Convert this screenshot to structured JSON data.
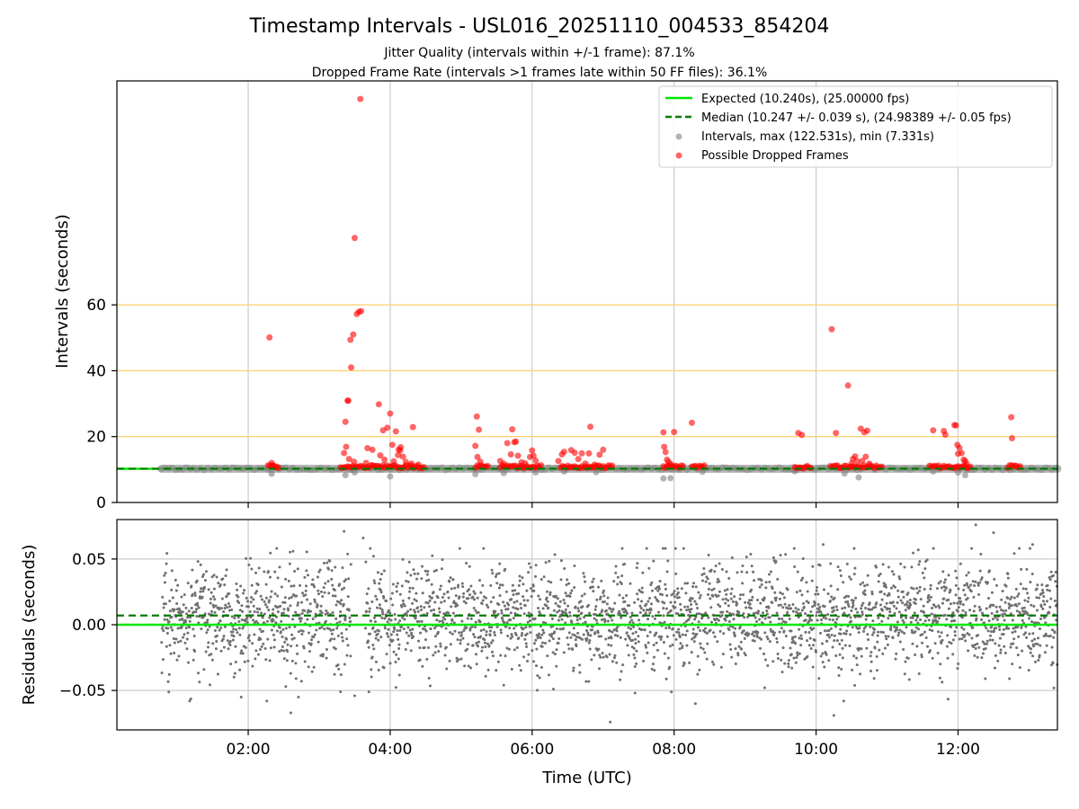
{
  "chart_data": {
    "title": "Timestamp Intervals - USL016_20251110_004533_854204",
    "subtitle_1": "Jitter Quality (intervals within +/-1 frame): 87.1%",
    "subtitle_2": "Dropped Frame Rate (intervals >1 frames late within 50 FF files): 36.1%",
    "x_axis": {
      "label": "Time (UTC)",
      "range_hours": [
        0.15,
        13.4
      ],
      "tick_hours": [
        2,
        4,
        6,
        8,
        10,
        12
      ],
      "tick_labels": [
        "02:00",
        "04:00",
        "06:00",
        "08:00",
        "10:00",
        "12:00"
      ]
    },
    "panels": [
      {
        "type": "scatter",
        "ylabel": "Intervals (seconds)",
        "ylim": [
          0,
          128
        ],
        "yticks": [
          0,
          20,
          40,
          60
        ],
        "ytick_labels": [
          "0",
          "20",
          "40",
          "60"
        ],
        "threshold_lines": [
          20,
          40,
          60
        ],
        "colors": {
          "expected": "#00e600",
          "median": "#007a00",
          "intervals": "#808080",
          "dropped": "#ff0000",
          "threshold": "#ffd27a"
        },
        "expected_value": 10.24,
        "median_value": 10.247,
        "series": [
          {
            "name": "Intervals, max (122.531s), min (7.331s)",
            "cluster_value": 10.24,
            "x_range": [
              0.78,
              13.4
            ],
            "outliers": [
              [
                2.33,
                8.7
              ],
              [
                3.37,
                8.3
              ],
              [
                3.5,
                9.1
              ],
              [
                4,
                7.9
              ],
              [
                5.2,
                8.6
              ],
              [
                5.6,
                8.9
              ],
              [
                6.05,
                9.1
              ],
              [
                6.45,
                9.4
              ],
              [
                6.9,
                9.2
              ],
              [
                7.85,
                7.3
              ],
              [
                7.95,
                7.4
              ],
              [
                8.4,
                9.3
              ],
              [
                9.7,
                9.5
              ],
              [
                10.4,
                8.8
              ],
              [
                10.6,
                7.6
              ],
              [
                11.65,
                9.4
              ],
              [
                12,
                9.1
              ],
              [
                12.1,
                8.3
              ]
            ]
          },
          {
            "name": "Possible Dropped Frames",
            "clusters": [
              [
                2.28,
                2.45
              ],
              [
                3.3,
                4.5
              ],
              [
                5.2,
                5.4
              ],
              [
                5.55,
                6.15
              ],
              [
                6.4,
                7.15
              ],
              [
                7.85,
                8.15
              ],
              [
                8.25,
                8.45
              ],
              [
                9.7,
                9.95
              ],
              [
                10.2,
                10.95
              ],
              [
                11.6,
                12.2
              ],
              [
                12.7,
                12.9
              ]
            ],
            "points": [
              [
                2.3,
                50.1
              ],
              [
                2.33,
                12
              ],
              [
                2.36,
                11.2
              ],
              [
                3.35,
                15
              ],
              [
                3.37,
                24.5
              ],
              [
                3.38,
                16.9
              ],
              [
                3.4,
                30.9
              ],
              [
                3.41,
                30.9
              ],
              [
                3.42,
                13.2
              ],
              [
                3.44,
                49.4
              ],
              [
                3.45,
                41
              ],
              [
                3.48,
                51
              ],
              [
                3.49,
                12.4
              ],
              [
                3.5,
                80.3
              ],
              [
                3.53,
                57.2
              ],
              [
                3.56,
                57.9
              ],
              [
                3.58,
                122.5
              ],
              [
                3.59,
                58.1
              ],
              [
                3.66,
                12
              ],
              [
                3.68,
                16.5
              ],
              [
                3.75,
                16
              ],
              [
                3.84,
                29.8
              ],
              [
                3.86,
                14.3
              ],
              [
                3.9,
                21.9
              ],
              [
                3.92,
                13
              ],
              [
                3.96,
                22.7
              ],
              [
                4,
                27
              ],
              [
                4.03,
                17.5
              ],
              [
                4.05,
                12.5
              ],
              [
                4.08,
                21.6
              ],
              [
                4.11,
                14.4
              ],
              [
                4.12,
                16.1
              ],
              [
                4.14,
                15.8
              ],
              [
                4.15,
                16.8
              ],
              [
                4.18,
                13.9
              ],
              [
                4.22,
                12.3
              ],
              [
                4.3,
                11.8
              ],
              [
                4.32,
                22.9
              ],
              [
                4.4,
                11.5
              ],
              [
                5.2,
                17.2
              ],
              [
                5.22,
                26.1
              ],
              [
                5.23,
                13.8
              ],
              [
                5.25,
                22.1
              ],
              [
                5.27,
                12.4
              ],
              [
                5.55,
                12.6
              ],
              [
                5.6,
                11.8
              ],
              [
                5.65,
                18
              ],
              [
                5.7,
                14.6
              ],
              [
                5.72,
                22.2
              ],
              [
                5.75,
                18.3
              ],
              [
                5.77,
                18.5
              ],
              [
                5.8,
                14.2
              ],
              [
                5.85,
                12.2
              ],
              [
                5.9,
                11.9
              ],
              [
                5.97,
                13.8
              ],
              [
                6,
                15.8
              ],
              [
                6.02,
                14.2
              ],
              [
                6.05,
                12.7
              ],
              [
                6.37,
                12.6
              ],
              [
                6.42,
                14.6
              ],
              [
                6.45,
                15.4
              ],
              [
                6.55,
                15.9
              ],
              [
                6.6,
                15.1
              ],
              [
                6.65,
                13.2
              ],
              [
                6.7,
                14.9
              ],
              [
                6.75,
                11.8
              ],
              [
                6.8,
                14.9
              ],
              [
                6.82,
                23
              ],
              [
                6.88,
                11.5
              ],
              [
                6.95,
                14.5
              ],
              [
                7,
                16
              ],
              [
                7.85,
                21.3
              ],
              [
                7.86,
                16.9
              ],
              [
                7.88,
                15.3
              ],
              [
                7.9,
                13
              ],
              [
                7.92,
                12.3
              ],
              [
                7.95,
                11.7
              ],
              [
                8,
                21.4
              ],
              [
                8.25,
                24.2
              ],
              [
                9.75,
                21.1
              ],
              [
                9.8,
                20.5
              ],
              [
                10.22,
                52.6
              ],
              [
                10.28,
                21.1
              ],
              [
                10.45,
                35.5
              ],
              [
                10.5,
                11.8
              ],
              [
                10.52,
                13.2
              ],
              [
                10.55,
                14
              ],
              [
                10.58,
                12.5
              ],
              [
                10.63,
                22.4
              ],
              [
                10.65,
                12.6
              ],
              [
                10.68,
                21.3
              ],
              [
                10.7,
                13.9
              ],
              [
                10.72,
                21.8
              ],
              [
                10.75,
                11.8
              ],
              [
                11.65,
                21.9
              ],
              [
                11.8,
                21.7
              ],
              [
                11.82,
                20.6
              ],
              [
                11.95,
                23.5
              ],
              [
                11.97,
                23.4
              ],
              [
                11.99,
                17.5
              ],
              [
                12,
                14.8
              ],
              [
                12.02,
                16.6
              ],
              [
                12.05,
                15
              ],
              [
                12.08,
                13
              ],
              [
                12.1,
                12.6
              ],
              [
                12.12,
                11.8
              ],
              [
                12.75,
                25.9
              ],
              [
                12.76,
                19.5
              ]
            ]
          }
        ],
        "legend": [
          {
            "kind": "line",
            "label": "Expected (10.240s), (25.00000 fps)"
          },
          {
            "kind": "dashed",
            "label": "Median (10.247 +/- 0.039 s), (24.98389 +/- 0.05 fps)"
          },
          {
            "kind": "gray-dot",
            "label": "Intervals, max (122.531s), min (7.331s)"
          },
          {
            "kind": "red-dot",
            "label": "Possible Dropped Frames"
          }
        ],
        "legend_placement": "upper right"
      },
      {
        "type": "scatter",
        "ylabel": "Residuals (seconds)",
        "ylim": [
          -0.08,
          0.08
        ],
        "yticks": [
          0.05,
          0,
          -0.05
        ],
        "ytick_labels": [
          "0.05",
          "0.00",
          "−0.05"
        ],
        "grid": true,
        "zero_line": 0,
        "median_line": 0.007,
        "point_color": "#707070",
        "series": [
          {
            "name": "Residuals",
            "distribution": {
              "mean": 0.006,
              "sd": 0.02,
              "x_range": [
                0.78,
                13.4
              ],
              "gap": [
                3.45,
                3.65
              ]
            },
            "extremes": [
              [
                2.53,
                -0.047
              ],
              [
                2.6,
                -0.067
              ],
              [
                2.75,
                -0.043
              ],
              [
                3.3,
                -0.051
              ],
              [
                3.35,
                0.071
              ],
              [
                3.5,
                -0.054
              ],
              [
                3.62,
                0.066
              ],
              [
                3.7,
                -0.051
              ],
              [
                5.6,
                -0.046
              ],
              [
                6.3,
                -0.049
              ],
              [
                7.1,
                -0.074
              ],
              [
                7.45,
                -0.052
              ],
              [
                8.3,
                -0.06
              ],
              [
                10.1,
                0.061
              ],
              [
                10.25,
                -0.069
              ],
              [
                12.25,
                0.076
              ],
              [
                12.5,
                0.07
              ],
              [
                13.05,
                0.061
              ]
            ]
          }
        ]
      }
    ]
  }
}
